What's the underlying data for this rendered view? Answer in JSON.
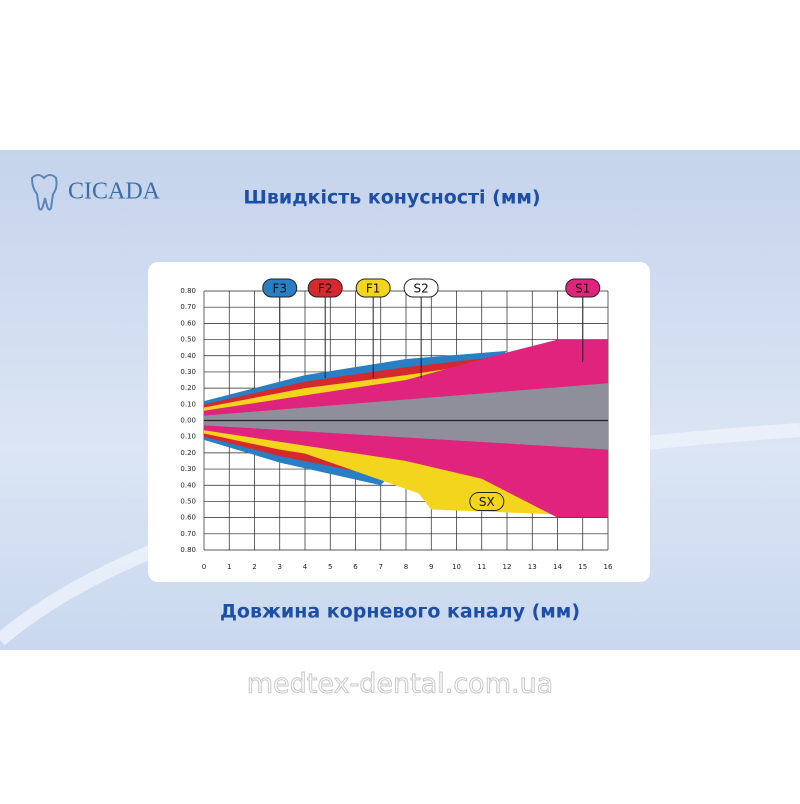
{
  "brand": "CICADA",
  "watermark": "medtex-dental.com.ua",
  "chart_data": {
    "type": "taper",
    "title": "Швидкість конусності (мм)",
    "x_label": "Довжина корневого каналу (мм)",
    "xlim": [
      0,
      16
    ],
    "xticks": [
      0,
      1,
      2,
      3,
      4,
      5,
      6,
      7,
      8,
      9,
      10,
      11,
      12,
      13,
      14,
      15,
      16
    ],
    "ylim": [
      -0.8,
      0.8
    ],
    "yticks": [
      {
        "value": 0.8,
        "label": "0.80"
      },
      {
        "value": 0.7,
        "label": "0.70"
      },
      {
        "value": 0.6,
        "label": "0.60"
      },
      {
        "value": 0.5,
        "label": "0.50"
      },
      {
        "value": 0.4,
        "label": "0.40"
      },
      {
        "value": 0.3,
        "label": "0.30"
      },
      {
        "value": 0.2,
        "label": "0.20"
      },
      {
        "value": 0.1,
        "label": "0.10"
      },
      {
        "value": 0,
        "label": "0.00"
      },
      {
        "value": -0.1,
        "label": "0.10"
      },
      {
        "value": -0.2,
        "label": "0.20"
      },
      {
        "value": -0.3,
        "label": "0.30"
      },
      {
        "value": -0.4,
        "label": "0.40"
      },
      {
        "value": -0.5,
        "label": "0.50"
      },
      {
        "value": -0.6,
        "label": "0.60"
      },
      {
        "value": -0.7,
        "label": "0.70"
      },
      {
        "value": -0.8,
        "label": "0.80"
      }
    ],
    "grid": true,
    "series": [
      {
        "name": "F3",
        "color": "#2a7fc4",
        "upper": {
          "x": [
            0,
            4,
            8,
            12
          ],
          "values": [
            0.12,
            0.28,
            0.38,
            0.43
          ]
        },
        "lower": {
          "x": [
            0,
            3,
            7
          ],
          "values": [
            -0.12,
            -0.26,
            -0.4
          ]
        }
      },
      {
        "name": "F2",
        "color": "#d42a2e",
        "upper": {
          "x": [
            0,
            4,
            8,
            12
          ],
          "values": [
            0.1,
            0.24,
            0.33,
            0.4
          ]
        },
        "lower": {
          "x": [
            0,
            3,
            7.5
          ],
          "values": [
            -0.1,
            -0.22,
            -0.36
          ]
        }
      },
      {
        "name": "F1",
        "color": "#f2d51c",
        "upper": {
          "x": [
            0,
            4,
            8,
            11
          ],
          "values": [
            0.08,
            0.2,
            0.28,
            0.35
          ]
        },
        "lower": {
          "x": [
            0,
            3,
            8
          ],
          "values": [
            -0.08,
            -0.18,
            -0.3
          ]
        }
      },
      {
        "name": "S2",
        "color": "#ffffff",
        "upper": {
          "x": [
            0,
            4,
            8,
            12
          ],
          "values": [
            0.06,
            0.14,
            0.22,
            0.42
          ]
        },
        "lower": {
          "x": [
            0,
            8
          ],
          "values": [
            -0.06,
            -0.25
          ]
        }
      },
      {
        "name": "SX",
        "color": "#f2d51c",
        "lower": {
          "x": [
            0,
            3,
            8.5,
            9,
            14
          ],
          "values": [
            -0.07,
            -0.15,
            -0.45,
            -0.55,
            -0.58
          ]
        }
      },
      {
        "name": "S1",
        "color": "#e0237d",
        "upper": {
          "x": [
            0,
            8,
            12,
            14,
            16
          ],
          "values": [
            0.06,
            0.25,
            0.42,
            0.5,
            0.5
          ]
        },
        "lower": {
          "x": [
            0,
            8,
            11,
            14,
            16
          ],
          "values": [
            -0.06,
            -0.25,
            -0.36,
            -0.6,
            -0.6
          ]
        }
      },
      {
        "color": "#8e8f9b",
        "upper": {
          "x": [
            0,
            16
          ],
          "values": [
            0.03,
            0.23
          ]
        },
        "lower": {
          "x": [
            0,
            16
          ],
          "values": [
            -0.03,
            -0.18
          ]
        }
      }
    ]
  }
}
